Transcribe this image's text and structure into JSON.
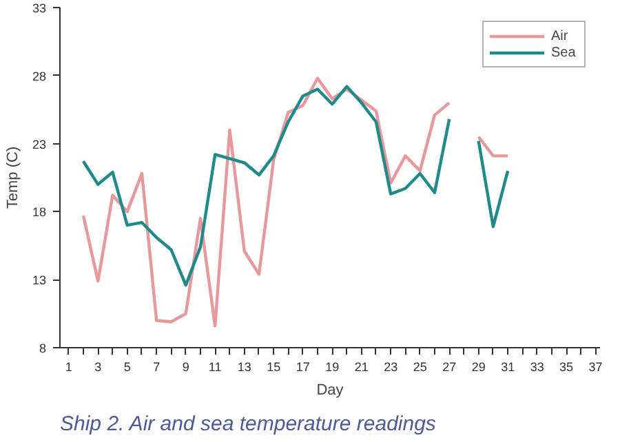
{
  "chart_data": {
    "type": "line",
    "title": "Ship 2. Air and sea temperature readings",
    "xlabel": "Day",
    "ylabel": "Temp (C)",
    "x": [
      2,
      3,
      4,
      5,
      6,
      7,
      8,
      9,
      10,
      11,
      12,
      13,
      14,
      15,
      16,
      17,
      18,
      19,
      20,
      21,
      22,
      23,
      24,
      25,
      26,
      27,
      28,
      29,
      30,
      31
    ],
    "series": [
      {
        "name": "Air",
        "color": "#e8989a",
        "values": [
          17.7,
          12.9,
          19.2,
          18.0,
          20.8,
          10.0,
          9.9,
          10.5,
          17.5,
          9.6,
          24.0,
          15.1,
          13.4,
          21.8,
          25.3,
          25.8,
          27.8,
          26.3,
          27.0,
          26.2,
          25.4,
          20.1,
          22.1,
          21.0,
          25.1,
          26.0,
          null,
          23.5,
          22.1,
          22.1
        ]
      },
      {
        "name": "Sea",
        "color": "#1f8a8a",
        "values": [
          21.7,
          20.0,
          20.9,
          17.0,
          17.2,
          16.1,
          15.2,
          12.6,
          15.4,
          22.2,
          21.9,
          21.6,
          20.7,
          22.1,
          24.6,
          26.5,
          27.0,
          25.9,
          27.2,
          26.0,
          24.6,
          19.3,
          19.7,
          20.8,
          19.4,
          24.8,
          null,
          23.2,
          16.9,
          21.0
        ]
      }
    ],
    "xlim": [
      0.4,
      37.3
    ],
    "ylim": [
      8,
      33
    ],
    "xticks": [
      1,
      {
        "value": 2,
        "label": null
      },
      3,
      {
        "value": 4,
        "label": null
      },
      5,
      {
        "value": 6,
        "label": null
      },
      7,
      {
        "value": 8,
        "label": null
      },
      9,
      {
        "value": 10,
        "label": null
      },
      11,
      {
        "value": 12,
        "label": null
      },
      13,
      {
        "value": 14,
        "label": null
      },
      15,
      {
        "value": 16,
        "label": null
      },
      17,
      {
        "value": 18,
        "label": null
      },
      19,
      {
        "value": 20,
        "label": null
      },
      21,
      {
        "value": 22,
        "label": null
      },
      23,
      {
        "value": 24,
        "label": null
      },
      25,
      {
        "value": 26,
        "label": null
      },
      27,
      {
        "value": 28,
        "label": null
      },
      29,
      {
        "value": 30,
        "label": null
      },
      31,
      {
        "value": 32,
        "label": null
      },
      33,
      {
        "value": 34,
        "label": null
      },
      35,
      {
        "value": 36,
        "label": null
      },
      37
    ],
    "yticks": [
      8,
      13,
      18,
      23,
      28,
      33
    ],
    "grid": false,
    "legend": "top right",
    "marker": "none",
    "line_style": "solid"
  }
}
